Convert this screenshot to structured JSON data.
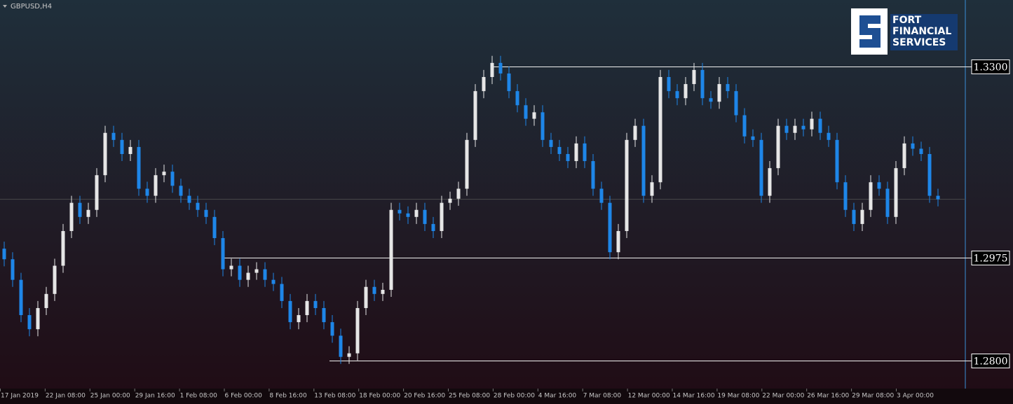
{
  "chart_data": {
    "type": "candlestick",
    "symbol": "GBPUSD,H4",
    "logo": [
      "FORT",
      "FINANCIAL",
      "SERVICES"
    ],
    "ylim": [
      1.2752,
      1.3413
    ],
    "levels": [
      {
        "value": 1.33,
        "label": "1.3300"
      },
      {
        "value": 1.2975,
        "label": "1.2975"
      },
      {
        "value": 1.28,
        "label": "1.2800"
      }
    ],
    "x_labels": [
      "17 Jan 2019",
      "22 Jan 08:00",
      "25 Jan 00:00",
      "29 Jan 16:00",
      "1 Feb 08:00",
      "6 Feb 00:00",
      "8 Feb 16:00",
      "13 Feb 08:00",
      "18 Feb 00:00",
      "20 Feb 16:00",
      "25 Feb 08:00",
      "28 Feb 00:00",
      "4 Mar 16:00",
      "7 Mar 08:00",
      "12 Mar 00:00",
      "14 Mar 16:00",
      "19 Mar 08:00",
      "22 Mar 00:00",
      "26 Mar 16:00",
      "29 Mar 08:00",
      "3 Apr 00:00"
    ],
    "up_color": "#e6e6e6",
    "down_color": "#1e86e8",
    "open": [
      1.299,
      1.2972,
      1.2937,
      1.2877,
      1.2853,
      1.2889,
      1.2913,
      1.2961,
      1.302,
      1.3068,
      1.3044,
      1.3056,
      1.3115,
      1.3187,
      1.3175,
      1.3151,
      1.3163,
      1.3092,
      1.308,
      1.3115,
      1.3121,
      1.3097,
      1.308,
      1.3068,
      1.3056,
      1.3044,
      1.3008,
      1.2955,
      1.2961,
      1.2937,
      1.2949,
      1.2955,
      1.2937,
      1.293,
      1.2901,
      1.2865,
      1.2877,
      1.2901,
      1.2889,
      1.2865,
      1.2842,
      1.2806,
      1.2812,
      1.2889,
      1.2925,
      1.2913,
      1.292,
      1.3056,
      1.305,
      1.3044,
      1.3056,
      1.3032,
      1.302,
      1.3068,
      1.3075,
      1.3092,
      1.3175,
      1.3258,
      1.3282,
      1.3306,
      1.3288,
      1.3258,
      1.3234,
      1.3211,
      1.3222,
      1.3175,
      1.3163,
      1.3151,
      1.3139,
      1.3169,
      1.3139,
      1.3092,
      1.3068,
      1.2984,
      1.302,
      1.3175,
      1.3199,
      1.308,
      1.3103,
      1.3282,
      1.3258,
      1.3246,
      1.327,
      1.3294,
      1.3246,
      1.324,
      1.327,
      1.3258,
      1.3217,
      1.3181,
      1.3175,
      1.308,
      1.3127,
      1.3199,
      1.3187,
      1.3199,
      1.3193,
      1.3211,
      1.3187,
      1.3175,
      1.3103,
      1.3056,
      1.3032,
      1.3056,
      1.3103,
      1.3092,
      1.3044,
      1.3127,
      1.3169,
      1.316,
      1.3151,
      1.308
    ],
    "high": [
      1.3002,
      1.2984,
      1.2949,
      1.2889,
      1.2901,
      1.2925,
      1.2973,
      1.3032,
      1.308,
      1.308,
      1.3068,
      1.3127,
      1.3199,
      1.3199,
      1.3187,
      1.3175,
      1.3175,
      1.3104,
      1.3127,
      1.3133,
      1.3133,
      1.3109,
      1.3092,
      1.308,
      1.3068,
      1.3056,
      1.302,
      1.2973,
      1.2973,
      1.2961,
      1.2967,
      1.2967,
      1.2949,
      1.2942,
      1.2913,
      1.2889,
      1.2913,
      1.2913,
      1.2901,
      1.2877,
      1.2854,
      1.2824,
      1.2901,
      1.2937,
      1.2937,
      1.2932,
      1.3068,
      1.3068,
      1.3062,
      1.3068,
      1.3068,
      1.3044,
      1.308,
      1.3087,
      1.3104,
      1.3187,
      1.327,
      1.3294,
      1.3318,
      1.3318,
      1.33,
      1.327,
      1.3246,
      1.3234,
      1.3234,
      1.3187,
      1.3175,
      1.3163,
      1.3181,
      1.3181,
      1.3151,
      1.3104,
      1.308,
      1.3032,
      1.3187,
      1.3211,
      1.3211,
      1.3115,
      1.3294,
      1.3294,
      1.327,
      1.3282,
      1.3306,
      1.3306,
      1.3258,
      1.3282,
      1.3282,
      1.327,
      1.3229,
      1.3193,
      1.3187,
      1.3139,
      1.3211,
      1.3211,
      1.3211,
      1.3211,
      1.3223,
      1.3223,
      1.3199,
      1.3187,
      1.3115,
      1.3068,
      1.3068,
      1.3115,
      1.3115,
      1.3104,
      1.3139,
      1.3181,
      1.3181,
      1.3172,
      1.3163,
      1.3092
    ],
    "low": [
      1.296,
      1.2925,
      1.2865,
      1.2841,
      1.2841,
      1.2877,
      1.2901,
      1.2949,
      1.3008,
      1.3032,
      1.3032,
      1.3044,
      1.3103,
      1.3163,
      1.3139,
      1.3139,
      1.308,
      1.3068,
      1.3068,
      1.3103,
      1.3085,
      1.3068,
      1.3056,
      1.3044,
      1.3032,
      1.2996,
      1.2943,
      1.2943,
      1.2925,
      1.2925,
      1.2937,
      1.2925,
      1.2918,
      1.2889,
      1.2853,
      1.2853,
      1.2865,
      1.2877,
      1.2853,
      1.283,
      1.2794,
      1.2794,
      1.28,
      1.2877,
      1.2901,
      1.2901,
      1.2908,
      1.3038,
      1.3032,
      1.3032,
      1.302,
      1.3008,
      1.3008,
      1.3056,
      1.3063,
      1.308,
      1.3163,
      1.3246,
      1.327,
      1.3276,
      1.3246,
      1.3222,
      1.3199,
      1.3199,
      1.3163,
      1.3151,
      1.3139,
      1.3127,
      1.3127,
      1.3127,
      1.308,
      1.3056,
      1.2972,
      1.2972,
      1.3008,
      1.3163,
      1.3068,
      1.3068,
      1.3091,
      1.3246,
      1.3234,
      1.3234,
      1.3258,
      1.3234,
      1.3228,
      1.3228,
      1.3246,
      1.3205,
      1.3169,
      1.3163,
      1.3068,
      1.3068,
      1.3115,
      1.3175,
      1.3175,
      1.3181,
      1.3181,
      1.3175,
      1.3163,
      1.3091,
      1.3044,
      1.302,
      1.302,
      1.3044,
      1.308,
      1.3032,
      1.3032,
      1.3115,
      1.3148,
      1.3139,
      1.3068,
      1.3062
    ],
    "close": [
      1.2972,
      1.2937,
      1.2877,
      1.2853,
      1.2889,
      1.2913,
      1.2961,
      1.302,
      1.3068,
      1.3044,
      1.3056,
      1.3115,
      1.3187,
      1.3175,
      1.3151,
      1.3163,
      1.3092,
      1.308,
      1.3115,
      1.3121,
      1.3097,
      1.308,
      1.3068,
      1.3056,
      1.3044,
      1.3008,
      1.2955,
      1.2961,
      1.2937,
      1.2949,
      1.2955,
      1.2937,
      1.293,
      1.2901,
      1.2865,
      1.2877,
      1.2901,
      1.2889,
      1.2865,
      1.2842,
      1.2806,
      1.2812,
      1.2889,
      1.2925,
      1.2913,
      1.292,
      1.3056,
      1.305,
      1.3044,
      1.3056,
      1.3032,
      1.302,
      1.3068,
      1.3075,
      1.3092,
      1.3175,
      1.3258,
      1.3282,
      1.3306,
      1.3288,
      1.3258,
      1.3234,
      1.3211,
      1.3222,
      1.3175,
      1.3163,
      1.3151,
      1.3139,
      1.3169,
      1.3139,
      1.3092,
      1.3068,
      1.2984,
      1.302,
      1.3175,
      1.3199,
      1.308,
      1.3103,
      1.3282,
      1.3258,
      1.3246,
      1.327,
      1.3294,
      1.3246,
      1.324,
      1.327,
      1.3258,
      1.3217,
      1.3181,
      1.3175,
      1.308,
      1.3127,
      1.3199,
      1.3187,
      1.3199,
      1.3193,
      1.3211,
      1.3187,
      1.3175,
      1.3103,
      1.3056,
      1.3032,
      1.3056,
      1.3103,
      1.3092,
      1.3044,
      1.3127,
      1.3169,
      1.316,
      1.3151,
      1.308,
      1.3074
    ]
  }
}
